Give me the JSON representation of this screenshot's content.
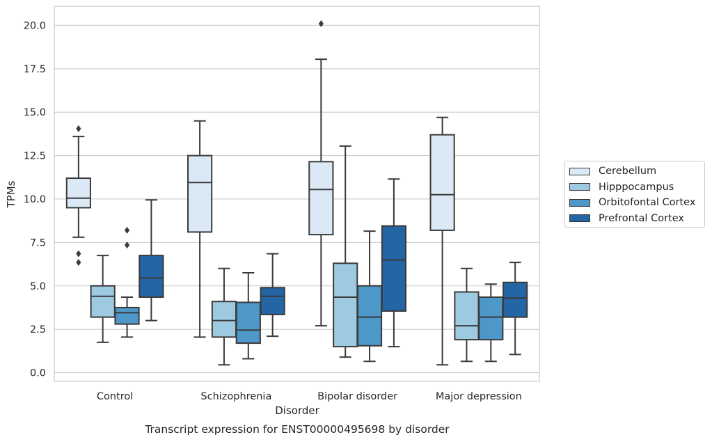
{
  "chart_data": {
    "type": "boxplot",
    "caption": "Transcript expression for ENST00000495698 by disorder",
    "xlabel": "Disorder",
    "ylabel": "TPMs",
    "ylim": [
      -0.5,
      21.1
    ],
    "yticks": [
      "0.0",
      "2.5",
      "5.0",
      "7.5",
      "10.0",
      "12.5",
      "15.0",
      "17.5",
      "20.0"
    ],
    "grid": "horizontal",
    "legend_position": "outside-right",
    "categories": [
      "Control",
      "Schizophrenia",
      "Bipolar disorder",
      "Major depression"
    ],
    "series": [
      {
        "name": "Cerebellum",
        "color": "#dbe9f6",
        "boxes": [
          {
            "whisker_low": 7.8,
            "q1": 9.5,
            "median": 10.05,
            "q3": 11.2,
            "whisker_high": 13.6,
            "outliers": [
              14.05,
              6.85,
              6.35
            ]
          },
          {
            "whisker_low": 2.05,
            "q1": 8.1,
            "median": 10.95,
            "q3": 12.5,
            "whisker_high": 14.5,
            "outliers": []
          },
          {
            "whisker_low": 2.7,
            "q1": 7.95,
            "median": 10.55,
            "q3": 12.15,
            "whisker_high": 18.05,
            "outliers": [
              20.1
            ]
          },
          {
            "whisker_low": 0.45,
            "q1": 8.2,
            "median": 10.25,
            "q3": 13.7,
            "whisker_high": 14.7,
            "outliers": []
          }
        ]
      },
      {
        "name": "Hipppocampus",
        "color": "#9ecae1",
        "boxes": [
          {
            "whisker_low": 1.75,
            "q1": 3.2,
            "median": 4.4,
            "q3": 5.0,
            "whisker_high": 6.75,
            "outliers": []
          },
          {
            "whisker_low": 0.45,
            "q1": 2.05,
            "median": 3.0,
            "q3": 4.1,
            "whisker_high": 6.0,
            "outliers": []
          },
          {
            "whisker_low": 0.9,
            "q1": 1.5,
            "median": 4.35,
            "q3": 6.3,
            "whisker_high": 13.05,
            "outliers": []
          },
          {
            "whisker_low": 0.65,
            "q1": 1.9,
            "median": 2.7,
            "q3": 4.65,
            "whisker_high": 6.0,
            "outliers": []
          }
        ]
      },
      {
        "name": "Orbitofontal Cortex",
        "color": "#4d97c9",
        "boxes": [
          {
            "whisker_low": 2.05,
            "q1": 2.8,
            "median": 3.45,
            "q3": 3.75,
            "whisker_high": 4.35,
            "outliers": [
              8.2,
              7.35
            ]
          },
          {
            "whisker_low": 0.8,
            "q1": 1.7,
            "median": 2.45,
            "q3": 4.05,
            "whisker_high": 5.75,
            "outliers": []
          },
          {
            "whisker_low": 0.65,
            "q1": 1.55,
            "median": 3.2,
            "q3": 5.0,
            "whisker_high": 8.15,
            "outliers": []
          },
          {
            "whisker_low": 0.65,
            "q1": 1.9,
            "median": 3.2,
            "q3": 4.35,
            "whisker_high": 5.1,
            "outliers": []
          }
        ]
      },
      {
        "name": "Prefrontal Cortex",
        "color": "#2465a6",
        "boxes": [
          {
            "whisker_low": 3.0,
            "q1": 4.35,
            "median": 5.45,
            "q3": 6.75,
            "whisker_high": 9.95,
            "outliers": []
          },
          {
            "whisker_low": 2.1,
            "q1": 3.35,
            "median": 4.4,
            "q3": 4.9,
            "whisker_high": 6.85,
            "outliers": []
          },
          {
            "whisker_low": 1.5,
            "q1": 3.55,
            "median": 6.5,
            "q3": 8.45,
            "whisker_high": 11.15,
            "outliers": []
          },
          {
            "whisker_low": 1.05,
            "q1": 3.2,
            "median": 4.3,
            "q3": 5.2,
            "whisker_high": 6.35,
            "outliers": []
          }
        ]
      }
    ]
  }
}
